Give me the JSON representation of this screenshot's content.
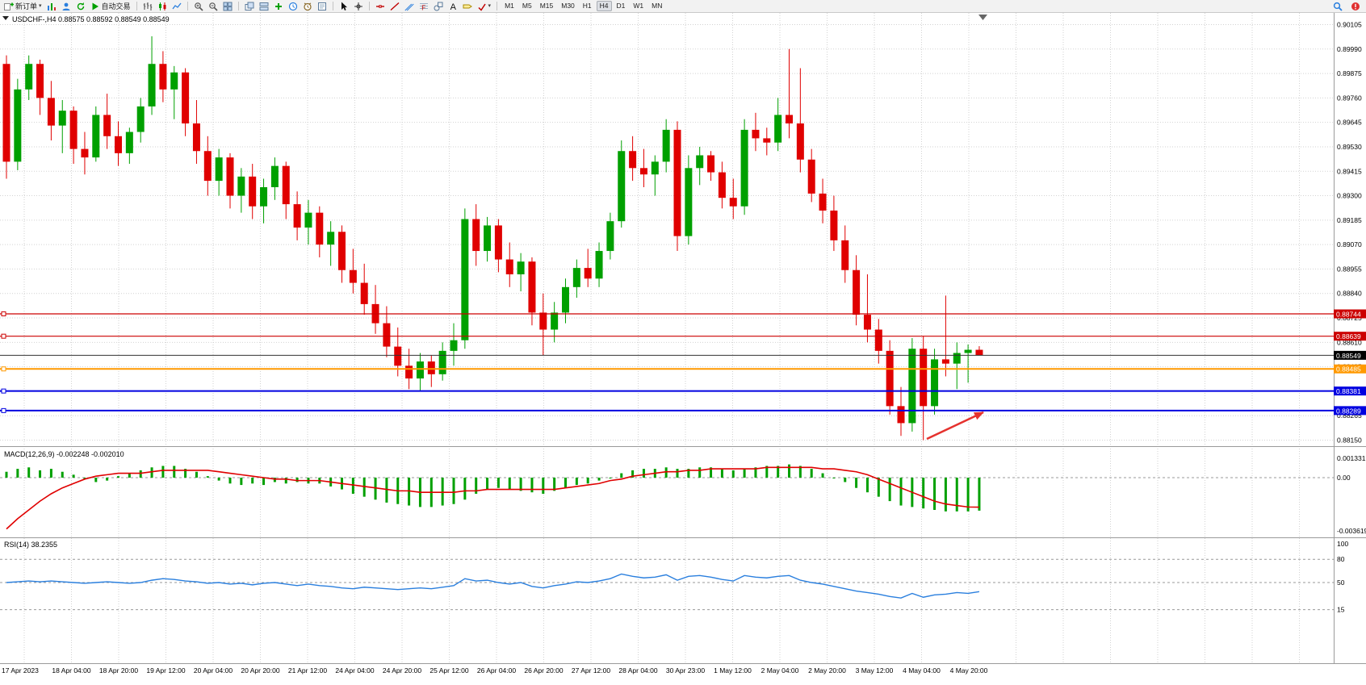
{
  "toolbar": {
    "new_order_label": "新订单",
    "autotrade_label": "自动交易",
    "timeframes": [
      "M1",
      "M5",
      "M15",
      "M30",
      "H1",
      "H4",
      "D1",
      "W1",
      "MN"
    ],
    "active_timeframe": "H4"
  },
  "chart": {
    "symbol_label": "USDCHF-,H4",
    "ohlc_text": "0.88575 0.88592 0.88549 0.88549"
  },
  "chart_data": {
    "type": "candlestick",
    "symbol": "USDCHF",
    "timeframe": "H4",
    "open": "0.88575",
    "high": "0.88592",
    "low": "0.88549",
    "close": "0.88549",
    "price_axis_labels": [
      "0.90105",
      "0.89990",
      "0.89875",
      "0.89760",
      "0.89645",
      "0.89530",
      "0.89415",
      "0.89300",
      "0.89185",
      "0.89070",
      "0.88955",
      "0.88840",
      "0.88725",
      "0.88610",
      "0.88495",
      "0.88380",
      "0.88265",
      "0.88150"
    ],
    "time_labels": [
      "17 Apr 2023",
      "18 Apr 04:00",
      "18 Apr 20:00",
      "19 Apr 12:00",
      "20 Apr 04:00",
      "20 Apr 20:00",
      "21 Apr 12:00",
      "24 Apr 04:00",
      "24 Apr 20:00",
      "25 Apr 12:00",
      "26 Apr 04:00",
      "26 Apr 20:00",
      "27 Apr 12:00",
      "28 Apr 04:00",
      "30 Apr 23:00",
      "1 May 12:00",
      "2 May 04:00",
      "2 May 20:00",
      "3 May 12:00",
      "4 May 04:00",
      "4 May 20:00"
    ],
    "levels": [
      {
        "label": "0.88744",
        "value": 0.88744,
        "color": "#CC0000",
        "width": 1.2,
        "handle": true
      },
      {
        "label": "0.88639",
        "value": 0.88639,
        "color": "#CC0000",
        "width": 1.2,
        "handle": true
      },
      {
        "label": "0.88549",
        "value": 0.88549,
        "color": "#333333",
        "width": 1,
        "handle": false,
        "badge": "#000000"
      },
      {
        "label": "0.88485",
        "value": 0.88485,
        "color": "#FF9900",
        "width": 2,
        "handle": true
      },
      {
        "label": "0.88381",
        "value": 0.88381,
        "color": "#0000E0",
        "width": 2,
        "handle": true
      },
      {
        "label": "0.88289",
        "value": 0.88289,
        "color": "#0000E0",
        "width": 2,
        "handle": true
      }
    ],
    "candles": [
      [
        0.8992,
        0.8996,
        0.8938,
        0.8946
      ],
      [
        0.8946,
        0.8985,
        0.8942,
        0.898
      ],
      [
        0.898,
        0.8996,
        0.8975,
        0.8992
      ],
      [
        0.8992,
        0.8994,
        0.8968,
        0.8976
      ],
      [
        0.8976,
        0.8984,
        0.8956,
        0.8963
      ],
      [
        0.8963,
        0.8975,
        0.895,
        0.897
      ],
      [
        0.897,
        0.8972,
        0.8945,
        0.8952
      ],
      [
        0.8952,
        0.896,
        0.894,
        0.8948
      ],
      [
        0.8948,
        0.8972,
        0.8946,
        0.8968
      ],
      [
        0.8968,
        0.8978,
        0.8952,
        0.8958
      ],
      [
        0.8958,
        0.8965,
        0.8944,
        0.895
      ],
      [
        0.895,
        0.8962,
        0.8945,
        0.896
      ],
      [
        0.896,
        0.8976,
        0.8955,
        0.8972
      ],
      [
        0.8972,
        0.9005,
        0.8968,
        0.8992
      ],
      [
        0.8992,
        0.8998,
        0.8974,
        0.898
      ],
      [
        0.898,
        0.8991,
        0.8966,
        0.8988
      ],
      [
        0.8988,
        0.899,
        0.8958,
        0.8964
      ],
      [
        0.8964,
        0.8975,
        0.8945,
        0.8951
      ],
      [
        0.8951,
        0.8958,
        0.893,
        0.8937
      ],
      [
        0.8937,
        0.8952,
        0.893,
        0.8948
      ],
      [
        0.8948,
        0.895,
        0.8924,
        0.893
      ],
      [
        0.893,
        0.8943,
        0.8922,
        0.8939
      ],
      [
        0.8939,
        0.8945,
        0.8919,
        0.8925
      ],
      [
        0.8925,
        0.8938,
        0.8917,
        0.8934
      ],
      [
        0.8934,
        0.8948,
        0.8928,
        0.8944
      ],
      [
        0.8944,
        0.8946,
        0.8919,
        0.8926
      ],
      [
        0.8926,
        0.8932,
        0.8909,
        0.8915
      ],
      [
        0.8915,
        0.8928,
        0.8907,
        0.8922
      ],
      [
        0.8922,
        0.8925,
        0.8901,
        0.8907
      ],
      [
        0.8907,
        0.8918,
        0.8897,
        0.8913
      ],
      [
        0.8913,
        0.8916,
        0.8889,
        0.8895
      ],
      [
        0.8895,
        0.8905,
        0.8884,
        0.8889
      ],
      [
        0.8889,
        0.8898,
        0.8874,
        0.8879
      ],
      [
        0.8879,
        0.8888,
        0.8865,
        0.887
      ],
      [
        0.887,
        0.8878,
        0.8854,
        0.8859
      ],
      [
        0.8859,
        0.8868,
        0.8845,
        0.885
      ],
      [
        0.885,
        0.8858,
        0.8839,
        0.8844
      ],
      [
        0.8844,
        0.8856,
        0.8838,
        0.8852
      ],
      [
        0.8852,
        0.8855,
        0.884,
        0.8846
      ],
      [
        0.8846,
        0.8861,
        0.8843,
        0.8857
      ],
      [
        0.8857,
        0.887,
        0.885,
        0.8862
      ],
      [
        0.8862,
        0.8924,
        0.8858,
        0.8919
      ],
      [
        0.8919,
        0.8926,
        0.8897,
        0.8904
      ],
      [
        0.8904,
        0.892,
        0.8899,
        0.8916
      ],
      [
        0.8916,
        0.8919,
        0.8894,
        0.89
      ],
      [
        0.89,
        0.8908,
        0.8887,
        0.8893
      ],
      [
        0.8893,
        0.8903,
        0.8885,
        0.8899
      ],
      [
        0.8899,
        0.8901,
        0.8869,
        0.8875
      ],
      [
        0.8875,
        0.8884,
        0.8855,
        0.8867
      ],
      [
        0.8867,
        0.888,
        0.8861,
        0.8875
      ],
      [
        0.8875,
        0.8891,
        0.887,
        0.8887
      ],
      [
        0.8887,
        0.89,
        0.8882,
        0.8896
      ],
      [
        0.8896,
        0.8905,
        0.8887,
        0.8891
      ],
      [
        0.8891,
        0.8908,
        0.8887,
        0.8904
      ],
      [
        0.8904,
        0.8922,
        0.89,
        0.8918
      ],
      [
        0.8918,
        0.8956,
        0.8915,
        0.8951
      ],
      [
        0.8951,
        0.8958,
        0.8937,
        0.8943
      ],
      [
        0.8943,
        0.8952,
        0.8934,
        0.894
      ],
      [
        0.894,
        0.8949,
        0.893,
        0.8946
      ],
      [
        0.8946,
        0.8966,
        0.8941,
        0.8961
      ],
      [
        0.8961,
        0.8965,
        0.8904,
        0.8911
      ],
      [
        0.8911,
        0.8949,
        0.8907,
        0.8943
      ],
      [
        0.8943,
        0.8953,
        0.8935,
        0.8949
      ],
      [
        0.8949,
        0.8951,
        0.8937,
        0.8941
      ],
      [
        0.8941,
        0.8946,
        0.8924,
        0.8929
      ],
      [
        0.8929,
        0.8938,
        0.8919,
        0.8925
      ],
      [
        0.8925,
        0.8966,
        0.8921,
        0.8961
      ],
      [
        0.8961,
        0.8969,
        0.8951,
        0.8957
      ],
      [
        0.8957,
        0.8962,
        0.8949,
        0.8955
      ],
      [
        0.8955,
        0.8976,
        0.8951,
        0.8968
      ],
      [
        0.8968,
        0.8999,
        0.8957,
        0.8964
      ],
      [
        0.8964,
        0.899,
        0.8941,
        0.8947
      ],
      [
        0.8947,
        0.8952,
        0.8927,
        0.8931
      ],
      [
        0.8931,
        0.8938,
        0.8917,
        0.8923
      ],
      [
        0.8923,
        0.893,
        0.8904,
        0.8909
      ],
      [
        0.8909,
        0.8916,
        0.8889,
        0.8895
      ],
      [
        0.8895,
        0.8902,
        0.8869,
        0.8874
      ],
      [
        0.8874,
        0.8893,
        0.8861,
        0.8867
      ],
      [
        0.8867,
        0.8872,
        0.8851,
        0.8857
      ],
      [
        0.8857,
        0.8862,
        0.8827,
        0.8831
      ],
      [
        0.8831,
        0.884,
        0.8817,
        0.8823
      ],
      [
        0.8823,
        0.8863,
        0.8819,
        0.8858
      ],
      [
        0.8858,
        0.8864,
        0.8815,
        0.8831
      ],
      [
        0.8831,
        0.8858,
        0.8827,
        0.8853
      ],
      [
        0.8853,
        0.8883,
        0.8845,
        0.8851
      ],
      [
        0.8851,
        0.8861,
        0.8839,
        0.8856
      ],
      [
        0.8856,
        0.886,
        0.8842,
        0.88575
      ],
      [
        0.88575,
        0.88592,
        0.88549,
        0.88549
      ]
    ],
    "macd": {
      "label": "MACD(12,26,9)",
      "value_text": "-0.002248 -0.002010",
      "axis_labels": [
        "0.001331",
        "0.00",
        "-0.003619"
      ],
      "histogram": [
        0.0004,
        0.0006,
        0.0007,
        0.0005,
        0.0006,
        0.0004,
        0.0002,
        -0.0001,
        -0.0003,
        -0.0002,
        0.0001,
        0.0003,
        0.0005,
        0.0007,
        0.0008,
        0.0008,
        0.0006,
        0.0004,
        0.0001,
        -0.0002,
        -0.0004,
        -0.0005,
        -0.0004,
        -0.0005,
        -0.0003,
        -0.0004,
        -0.0003,
        -0.0004,
        -0.0004,
        -0.0006,
        -0.0008,
        -0.0011,
        -0.0013,
        -0.0015,
        -0.0017,
        -0.0018,
        -0.0019,
        -0.002,
        -0.002,
        -0.0019,
        -0.0018,
        -0.0015,
        -0.0011,
        -0.0008,
        -0.0007,
        -0.0008,
        -0.0009,
        -0.001,
        -0.0011,
        -0.0009,
        -0.0007,
        -0.0005,
        -0.0004,
        -0.0002,
        0.0,
        0.0003,
        0.0005,
        0.0006,
        0.0006,
        0.0007,
        0.0006,
        0.0006,
        0.0007,
        0.0007,
        0.0006,
        0.0005,
        0.0006,
        0.0007,
        0.0008,
        0.0008,
        0.0009,
        0.0008,
        0.0006,
        0.0003,
        0.0,
        -0.0003,
        -0.0007,
        -0.001,
        -0.0013,
        -0.0016,
        -0.0019,
        -0.002,
        -0.0021,
        -0.0022,
        -0.0023,
        -0.0023,
        -0.0023,
        -0.00225
      ],
      "signal": [
        -0.0035,
        -0.0028,
        -0.0022,
        -0.0016,
        -0.0011,
        -0.0007,
        -0.0004,
        -0.0001,
        0.0001,
        0.0002,
        0.0003,
        0.0003,
        0.0003,
        0.0004,
        0.0005,
        0.0005,
        0.0005,
        0.0005,
        0.0005,
        0.0004,
        0.0003,
        0.0002,
        0.0001,
        0.0,
        -0.0001,
        -0.0001,
        -0.0002,
        -0.0002,
        -0.0002,
        -0.0003,
        -0.0004,
        -0.0005,
        -0.0006,
        -0.0007,
        -0.0008,
        -0.0009,
        -0.0009,
        -0.001,
        -0.001,
        -0.001,
        -0.001,
        -0.0009,
        -0.0009,
        -0.0008,
        -0.0008,
        -0.0008,
        -0.0008,
        -0.0008,
        -0.0008,
        -0.0008,
        -0.0007,
        -0.0006,
        -0.0005,
        -0.0004,
        -0.0002,
        -0.0001,
        0.0001,
        0.0002,
        0.0003,
        0.0004,
        0.0004,
        0.0005,
        0.0005,
        0.0006,
        0.0006,
        0.0006,
        0.0006,
        0.0006,
        0.0007,
        0.0007,
        0.0007,
        0.0007,
        0.0007,
        0.0006,
        0.0006,
        0.0005,
        0.0004,
        0.0002,
        -0.0001,
        -0.0004,
        -0.0007,
        -0.001,
        -0.0013,
        -0.0016,
        -0.0018,
        -0.0019,
        -0.002,
        -0.00201
      ]
    },
    "rsi": {
      "label": "RSI(14)",
      "value_text": "38.2355",
      "axis_labels": [
        "100",
        "80",
        "50",
        "15"
      ],
      "levels": [
        80,
        50,
        15
      ],
      "values": [
        50,
        51,
        52,
        51,
        52,
        51,
        50,
        49,
        50,
        51,
        50,
        49,
        50,
        53,
        55,
        54,
        52,
        51,
        49,
        50,
        48,
        49,
        47,
        49,
        50,
        48,
        46,
        48,
        46,
        45,
        43,
        42,
        44,
        43,
        42,
        41,
        42,
        43,
        42,
        44,
        46,
        55,
        52,
        53,
        50,
        48,
        50,
        45,
        43,
        46,
        48,
        51,
        50,
        52,
        55,
        61,
        58,
        56,
        57,
        60,
        53,
        58,
        59,
        57,
        54,
        52,
        59,
        57,
        56,
        58,
        59,
        53,
        50,
        48,
        45,
        42,
        39,
        37,
        35,
        32,
        30,
        36,
        31,
        34,
        35,
        37,
        36,
        38.24
      ]
    },
    "colors": {
      "bull": "#00A000",
      "bear": "#E00000",
      "macd_hist": "#00A000",
      "macd_signal": "#E00000",
      "rsi_line": "#2A7FDE",
      "grid": "#D2D2D2"
    }
  },
  "annotations": {
    "arrow_color": "#E5322E"
  }
}
